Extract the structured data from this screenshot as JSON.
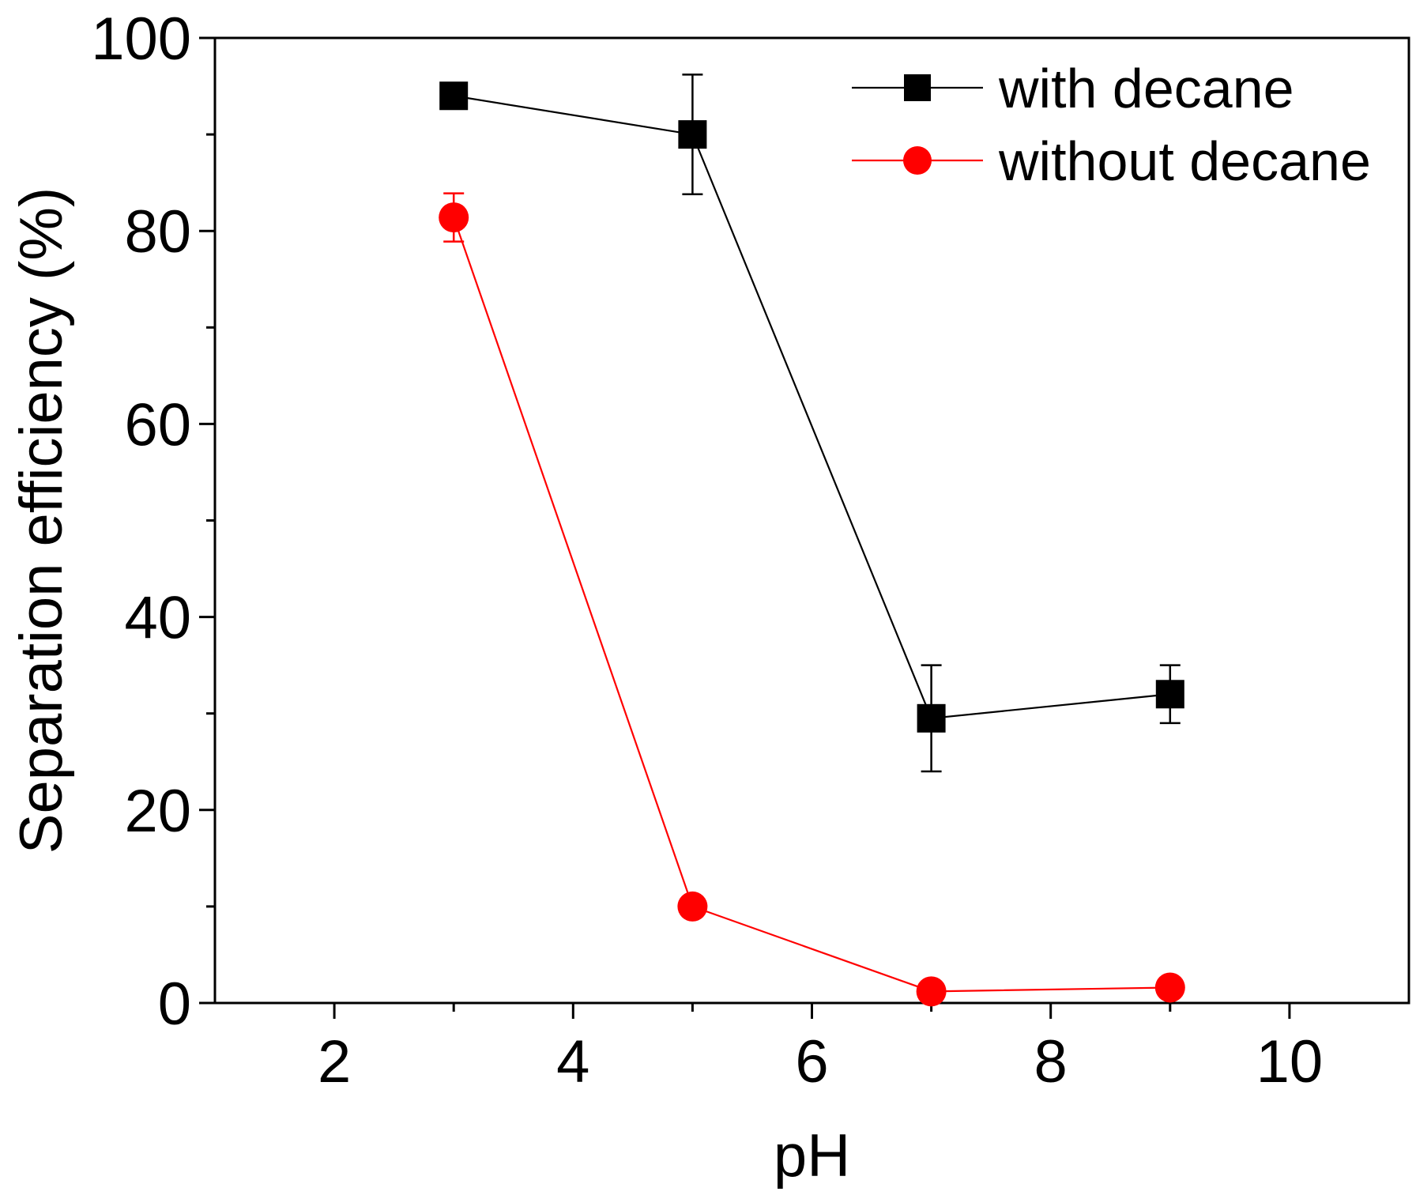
{
  "chart_data": {
    "type": "line",
    "title": "",
    "xlabel": "pH",
    "ylabel": "Separation efficiency (%)",
    "xlim": [
      1,
      11
    ],
    "ylim": [
      0,
      100
    ],
    "x_ticks": [
      2,
      4,
      6,
      8,
      10
    ],
    "x_tick_labels": [
      "2",
      "4",
      "6",
      "8",
      "10"
    ],
    "x_minor_ticks": [
      3,
      5,
      7,
      9
    ],
    "y_ticks": [
      0,
      20,
      40,
      60,
      80,
      100
    ],
    "y_tick_labels": [
      "0",
      "20",
      "40",
      "60",
      "80",
      "100"
    ],
    "y_minor_ticks": [
      10,
      30,
      50,
      70,
      90
    ],
    "grid": false,
    "legend_position": "top-right",
    "series": [
      {
        "name": "with decane",
        "color": "#000000",
        "marker": "square",
        "x": [
          3,
          5,
          7,
          9
        ],
        "y": [
          94,
          90,
          29.5,
          32
        ],
        "error": [
          0,
          6.2,
          5.5,
          3
        ]
      },
      {
        "name": "without decane",
        "color": "#ff0000",
        "marker": "circle",
        "x": [
          3,
          5,
          7,
          9
        ],
        "y": [
          81.4,
          10,
          1.2,
          1.6
        ],
        "error": [
          2.5,
          0,
          0,
          0
        ]
      }
    ]
  }
}
